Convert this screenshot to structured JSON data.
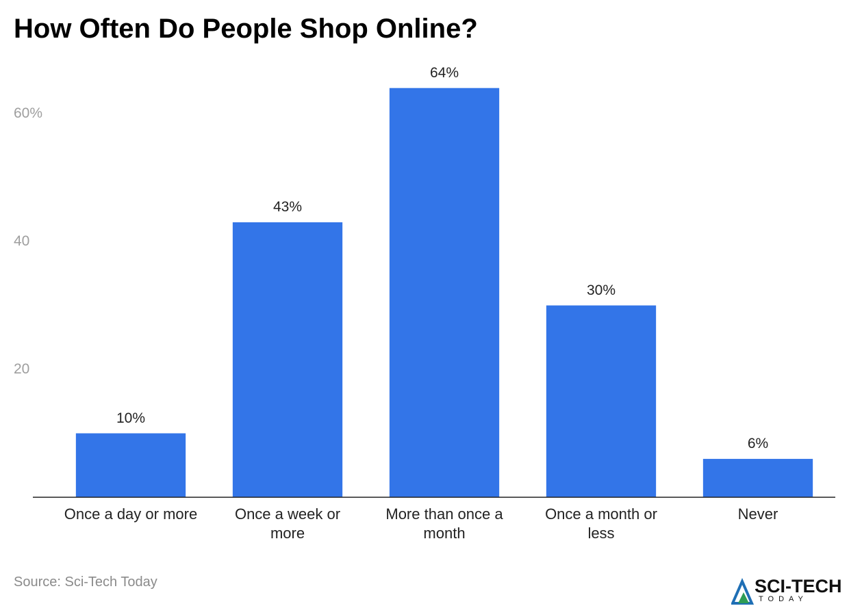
{
  "chart_data": {
    "type": "bar",
    "title": "How Often Do People Shop Online?",
    "categories": [
      "Once a day or more",
      "Once a week or more",
      "More than once a month",
      "Once a month or less",
      "Never"
    ],
    "values": [
      10,
      43,
      64,
      30,
      6
    ],
    "value_labels": [
      "10%",
      "43%",
      "64%",
      "30%",
      "6%"
    ],
    "color": "#3375e8",
    "ylim": [
      0,
      66
    ],
    "yticks": [
      20,
      40,
      {
        "value": 60,
        "label": "60%"
      }
    ],
    "grid": false,
    "source": "Source: Sci-Tech Today"
  },
  "logo": {
    "name": "SCI-TECH",
    "tagline": "TODAY"
  }
}
